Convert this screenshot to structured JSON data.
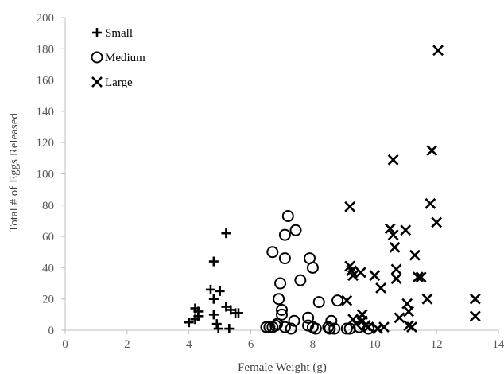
{
  "chart_data": {
    "type": "scatter",
    "xlabel": "Female Weight (g)",
    "ylabel": "Total # of Eggs Released",
    "xlim": [
      0,
      14
    ],
    "ylim": [
      0,
      200
    ],
    "xticks": [
      0,
      2,
      4,
      6,
      8,
      10,
      12,
      14
    ],
    "yticks": [
      0,
      20,
      40,
      60,
      80,
      100,
      120,
      140,
      160,
      180,
      200
    ],
    "grid": false,
    "legend_position": "top-left",
    "series": [
      {
        "name": "Small",
        "marker": "plus",
        "color": "#000000",
        "points": [
          [
            4.0,
            5
          ],
          [
            4.2,
            14
          ],
          [
            4.3,
            12
          ],
          [
            4.3,
            9
          ],
          [
            4.2,
            7
          ],
          [
            4.7,
            26
          ],
          [
            4.8,
            20
          ],
          [
            4.8,
            10
          ],
          [
            4.9,
            4
          ],
          [
            4.95,
            1
          ],
          [
            5.0,
            25
          ],
          [
            4.8,
            44
          ],
          [
            5.2,
            62
          ],
          [
            5.2,
            15
          ],
          [
            5.35,
            13
          ],
          [
            5.5,
            11
          ],
          [
            5.6,
            11
          ],
          [
            5.3,
            1
          ]
        ]
      },
      {
        "name": "Medium",
        "marker": "circle",
        "color": "#000000",
        "points": [
          [
            6.5,
            2
          ],
          [
            6.6,
            2
          ],
          [
            6.7,
            2
          ],
          [
            6.8,
            3
          ],
          [
            6.85,
            4
          ],
          [
            6.9,
            20
          ],
          [
            6.7,
            50
          ],
          [
            6.95,
            30
          ],
          [
            7.0,
            13
          ],
          [
            7.0,
            10
          ],
          [
            7.1,
            46
          ],
          [
            7.1,
            61
          ],
          [
            7.2,
            73
          ],
          [
            7.3,
            1
          ],
          [
            7.45,
            64
          ],
          [
            7.4,
            6
          ],
          [
            7.6,
            32
          ],
          [
            7.9,
            46
          ],
          [
            8.0,
            40
          ],
          [
            7.85,
            8
          ],
          [
            7.85,
            3
          ],
          [
            8.0,
            2
          ],
          [
            8.1,
            1
          ],
          [
            8.2,
            18
          ],
          [
            8.5,
            2
          ],
          [
            8.55,
            1
          ],
          [
            8.6,
            6
          ],
          [
            8.7,
            1
          ],
          [
            8.8,
            19
          ],
          [
            9.1,
            1
          ],
          [
            9.2,
            1
          ],
          [
            9.5,
            2
          ],
          [
            9.8,
            1
          ],
          [
            7.1,
            2
          ]
        ]
      },
      {
        "name": "Large",
        "marker": "x",
        "color": "#000000",
        "points": [
          [
            9.1,
            19
          ],
          [
            9.2,
            79
          ],
          [
            9.2,
            41
          ],
          [
            9.25,
            38
          ],
          [
            9.3,
            35
          ],
          [
            9.3,
            7
          ],
          [
            9.4,
            4
          ],
          [
            9.55,
            37
          ],
          [
            9.6,
            10
          ],
          [
            9.6,
            6
          ],
          [
            9.7,
            3
          ],
          [
            9.8,
            2
          ],
          [
            10.0,
            35
          ],
          [
            10.1,
            1
          ],
          [
            10.2,
            27
          ],
          [
            10.3,
            2
          ],
          [
            10.5,
            65
          ],
          [
            10.6,
            61
          ],
          [
            10.6,
            109
          ],
          [
            10.65,
            53
          ],
          [
            10.7,
            39
          ],
          [
            10.7,
            33
          ],
          [
            10.8,
            8
          ],
          [
            11.0,
            64
          ],
          [
            11.05,
            17
          ],
          [
            11.1,
            12
          ],
          [
            11.1,
            3
          ],
          [
            11.2,
            2
          ],
          [
            11.3,
            48
          ],
          [
            11.4,
            34
          ],
          [
            11.5,
            34
          ],
          [
            11.7,
            20
          ],
          [
            11.8,
            81
          ],
          [
            11.85,
            115
          ],
          [
            12.0,
            69
          ],
          [
            12.05,
            179
          ],
          [
            13.25,
            20
          ],
          [
            13.25,
            9
          ]
        ]
      }
    ]
  }
}
